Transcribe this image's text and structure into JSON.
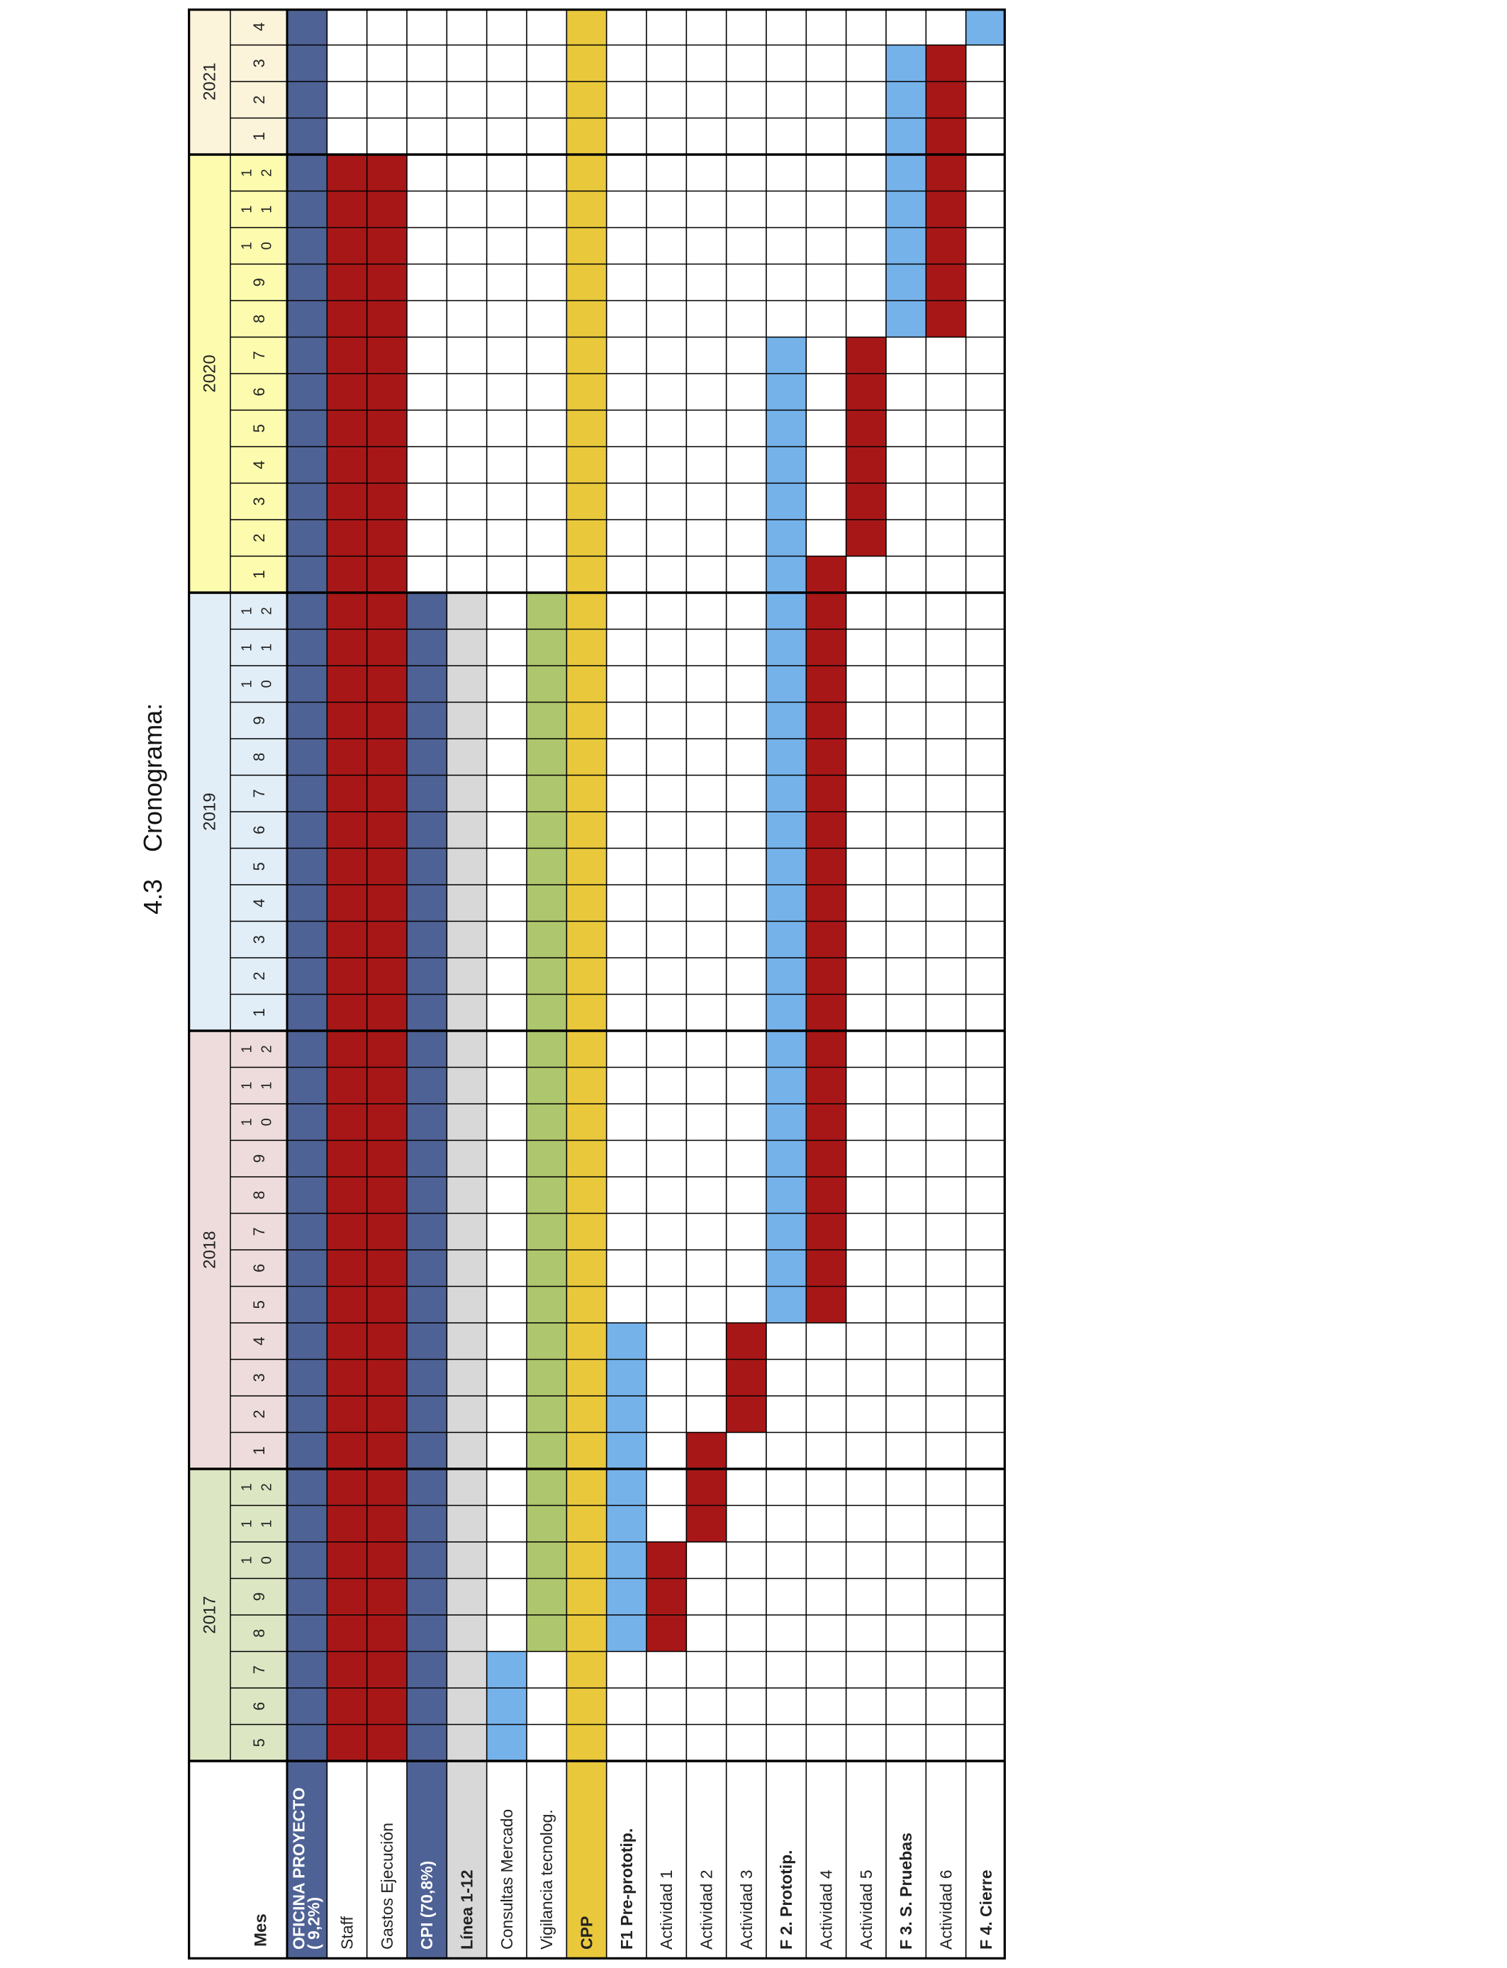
{
  "section": {
    "number": "4.3",
    "title": "Cronograma:"
  },
  "colors": {
    "year_2017": "#dde6c3",
    "year_2018": "#eedcdc",
    "year_2019": "#e2eef7",
    "year_2020": "#fdfcae",
    "year_2021": "#fbf3da",
    "navy": "#4f6295",
    "red": "#a81717",
    "blue": "#76b2ea",
    "green": "#aec66d",
    "gray": "#d8d8d8",
    "gold": "#e9c83c",
    "white": "#ffffff",
    "border": "#000000"
  },
  "header": {
    "mes_label": "Mes",
    "years": [
      {
        "label": "2017",
        "months": 8
      },
      {
        "label": "2018",
        "months": 12
      },
      {
        "label": "2019",
        "months": 12
      },
      {
        "label": "2020",
        "months": 12
      },
      {
        "label": "2021",
        "months": 4
      }
    ],
    "month_labels": [
      "5",
      "6",
      "7",
      "8",
      "9",
      "1|0",
      "1|1",
      "1|2",
      "1",
      "2",
      "3",
      "4",
      "5",
      "6",
      "7",
      "8",
      "9",
      "1|0",
      "1|1",
      "1|2",
      "1",
      "2",
      "3",
      "4",
      "5",
      "6",
      "7",
      "8",
      "9",
      "1|0",
      "1|1",
      "1|2",
      "1",
      "2",
      "3",
      "4",
      "5",
      "6",
      "7",
      "8",
      "9",
      "1|0",
      "1|1",
      "1|2",
      "1",
      "2",
      "3",
      "4"
    ]
  },
  "rows": [
    {
      "label": "OFICINA PROYECTO ( 9,2%)",
      "bold": true,
      "label_color": "navy",
      "text_color": "white",
      "fill": [
        {
          "color": "navy",
          "start": 0,
          "end": 48
        }
      ]
    },
    {
      "label": "Staff",
      "bold": false,
      "fill": [
        {
          "color": "red",
          "start": 0,
          "end": 44
        }
      ]
    },
    {
      "label": "Gastos Ejecución",
      "bold": false,
      "fill": [
        {
          "color": "red",
          "start": 0,
          "end": 44
        }
      ]
    },
    {
      "label": "CPI (70,8%)",
      "bold": true,
      "label_color": "navy",
      "text_color": "white",
      "fill": [
        {
          "color": "navy",
          "start": 0,
          "end": 32
        }
      ]
    },
    {
      "label": "Línea 1-12",
      "bold": true,
      "label_color": "gray",
      "fill": [
        {
          "color": "gray",
          "start": 0,
          "end": 32
        }
      ]
    },
    {
      "label": "Consultas Mercado",
      "bold": false,
      "fill": [
        {
          "color": "blue",
          "start": 0,
          "end": 3
        }
      ]
    },
    {
      "label": "Vigilancia tecnolog.",
      "bold": false,
      "fill": [
        {
          "color": "green",
          "start": 3,
          "end": 32
        }
      ]
    },
    {
      "label": "CPP",
      "bold": true,
      "label_color": "gold",
      "fill": [
        {
          "color": "gold",
          "start": 0,
          "end": 48
        }
      ]
    },
    {
      "label": "F1 Pre-prototip.",
      "bold": true,
      "fill": [
        {
          "color": "blue",
          "start": 3,
          "end": 12
        }
      ]
    },
    {
      "label": "Actividad 1",
      "bold": false,
      "fill": [
        {
          "color": "red",
          "start": 3,
          "end": 6
        }
      ]
    },
    {
      "label": "Actividad 2",
      "bold": false,
      "fill": [
        {
          "color": "red",
          "start": 6,
          "end": 9
        }
      ]
    },
    {
      "label": "Actividad 3",
      "bold": false,
      "fill": [
        {
          "color": "red",
          "start": 9,
          "end": 12
        }
      ]
    },
    {
      "label": "F 2. Prototip.",
      "bold": true,
      "fill": [
        {
          "color": "blue",
          "start": 12,
          "end": 39
        }
      ]
    },
    {
      "label": "Actividad 4",
      "bold": false,
      "fill": [
        {
          "color": "red",
          "start": 12,
          "end": 33
        }
      ]
    },
    {
      "label": "Actividad 5",
      "bold": false,
      "fill": [
        {
          "color": "red",
          "start": 33,
          "end": 39
        }
      ]
    },
    {
      "label": "F 3. S. Pruebas",
      "bold": true,
      "fill": [
        {
          "color": "blue",
          "start": 39,
          "end": 47
        }
      ]
    },
    {
      "label": "Actividad 6",
      "bold": false,
      "fill": [
        {
          "color": "red",
          "start": 39,
          "end": 47
        }
      ]
    },
    {
      "label": "F 4. Cierre",
      "bold": true,
      "fill": [
        {
          "color": "blue",
          "start": 47,
          "end": 48
        }
      ]
    }
  ]
}
